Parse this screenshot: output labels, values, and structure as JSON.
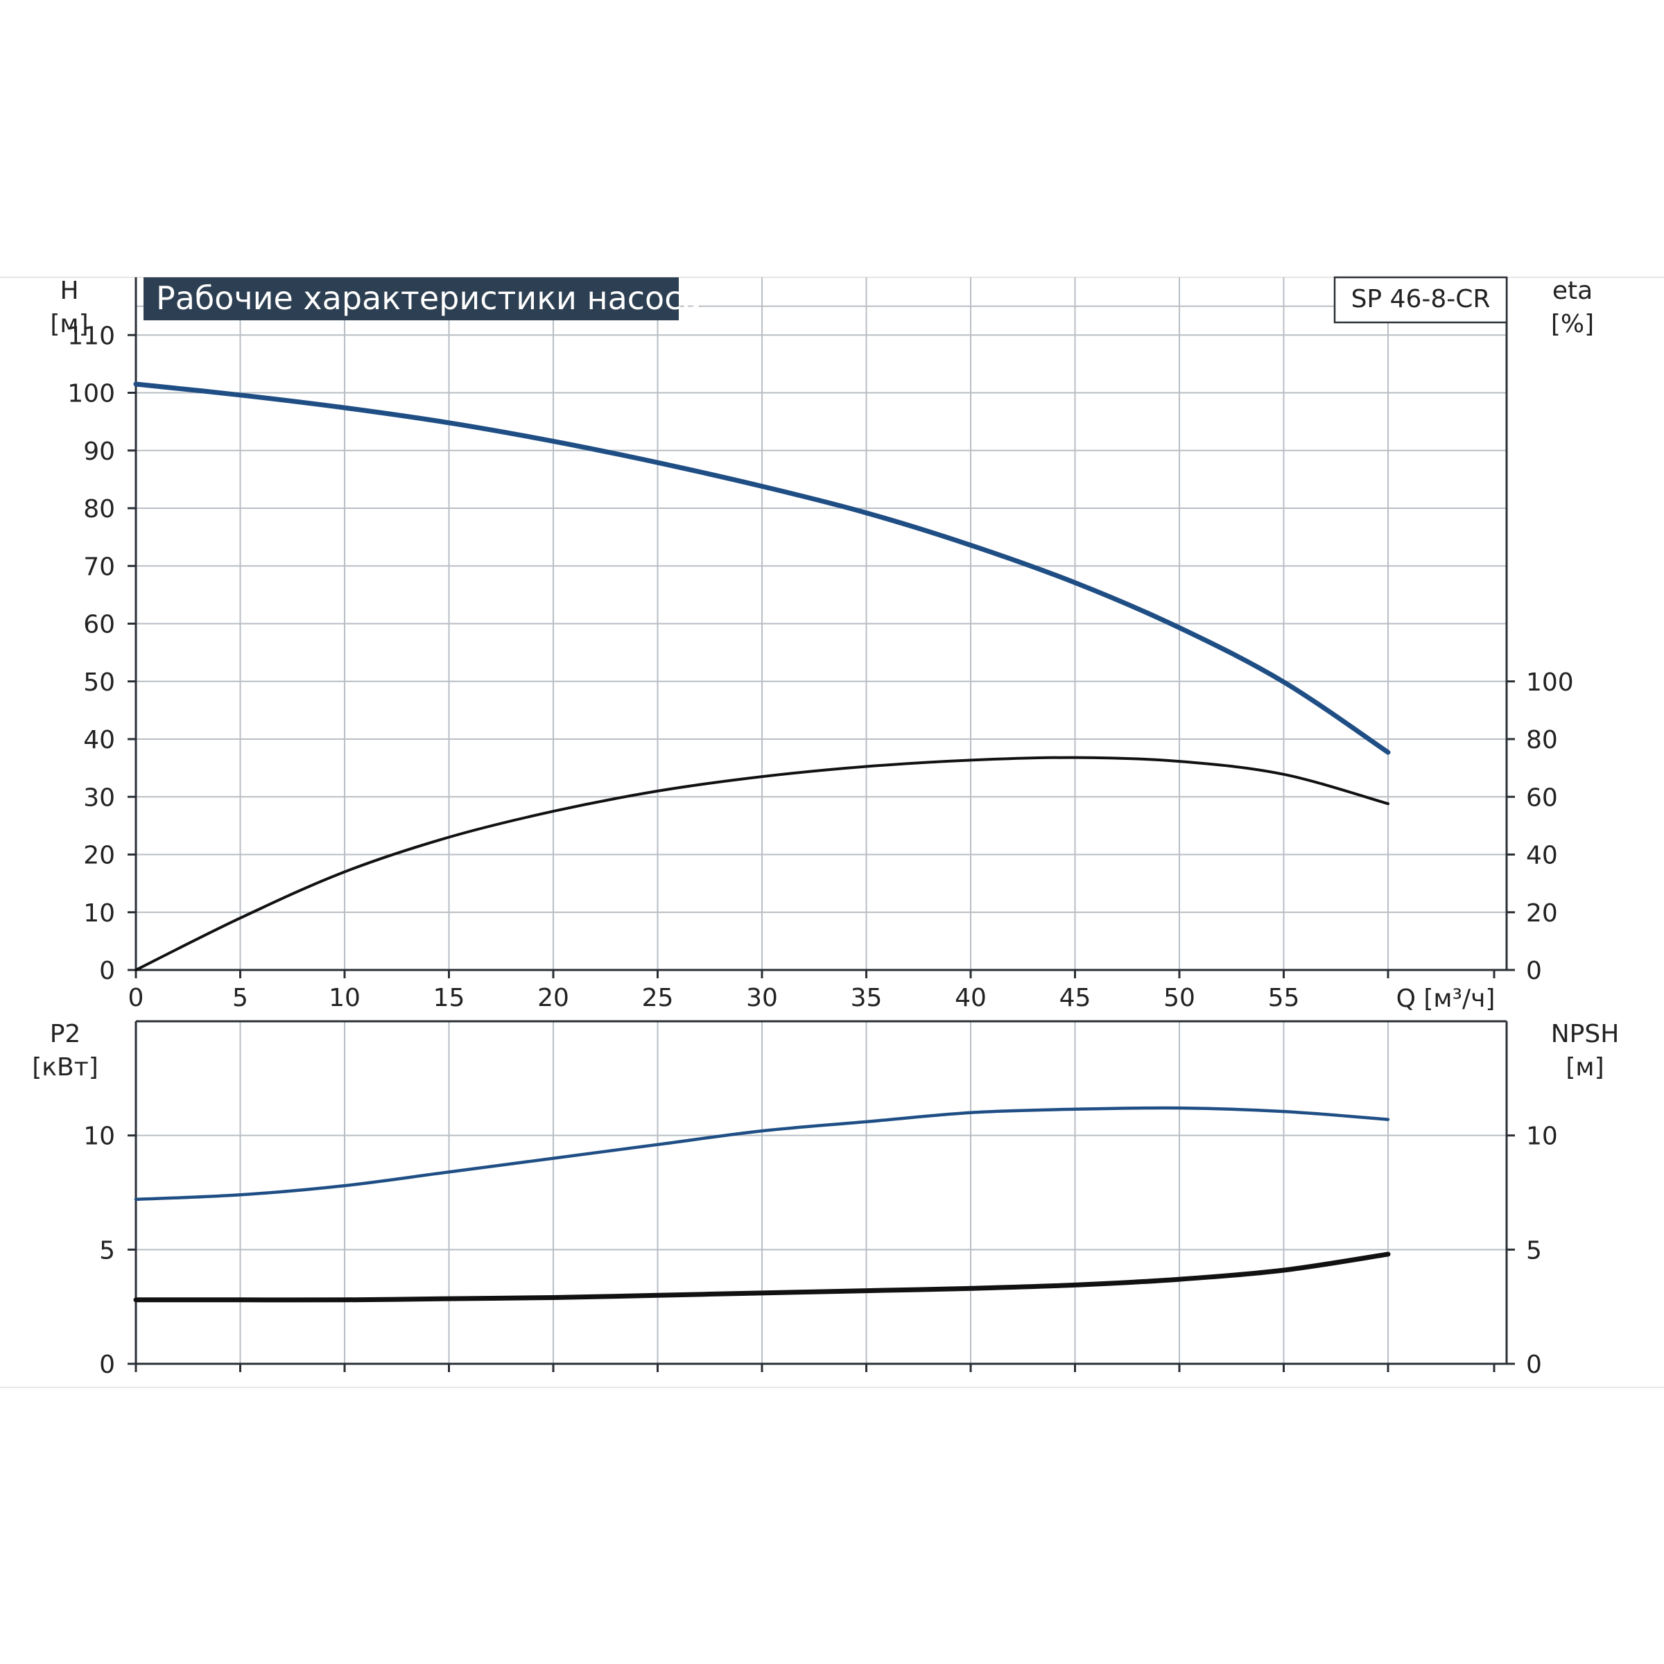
{
  "chart_data": [
    {
      "type": "line",
      "title": "Рабочие характеристики насоса",
      "model": "SP 46-8-CR",
      "xlabel": "Q [м³/ч]",
      "xlim": [
        0,
        65
      ],
      "xticks": [
        "0",
        "5",
        "10",
        "15",
        "20",
        "25",
        "30",
        "35",
        "40",
        "45",
        "50",
        "55"
      ],
      "left_axis": {
        "name": "H",
        "unit": "[м]",
        "ylim": [
          0,
          120
        ],
        "ticks": [
          "0",
          "10",
          "20",
          "30",
          "40",
          "50",
          "60",
          "70",
          "80",
          "90",
          "100",
          "110"
        ]
      },
      "right_axis": {
        "name": "eta",
        "unit": "[%]",
        "ylim": [
          0,
          240
        ],
        "ticks": [
          "0",
          "20",
          "40",
          "60",
          "80",
          "100"
        ]
      },
      "series": [
        {
          "key": "H",
          "axis": "left",
          "color": "#1f4e85",
          "x": [
            0,
            5,
            10,
            15,
            20,
            25,
            30,
            35,
            40,
            45,
            50,
            55,
            60
          ],
          "y": [
            101.5,
            99.6,
            97.4,
            94.8,
            91.6,
            87.9,
            83.8,
            79.2,
            73.6,
            67.1,
            59.3,
            49.9,
            37.7
          ]
        },
        {
          "key": "eta",
          "axis": "right",
          "color": "#111111",
          "x": [
            0,
            5,
            10,
            15,
            20,
            25,
            30,
            35,
            40,
            45,
            50,
            55,
            60
          ],
          "y": [
            0,
            18,
            34,
            46,
            55,
            62,
            67,
            70.5,
            72.7,
            73.6,
            72.3,
            67.8,
            57.6
          ]
        }
      ]
    },
    {
      "type": "line",
      "xlim": [
        0,
        65
      ],
      "left_axis": {
        "name": "P2",
        "unit": "[кВт]",
        "ylim": [
          0,
          15
        ],
        "ticks": [
          "0",
          "5",
          "10"
        ]
      },
      "right_axis": {
        "name": "NPSH",
        "unit": "[м]",
        "ylim": [
          0,
          15
        ],
        "ticks": [
          "0",
          "5",
          "10"
        ]
      },
      "series": [
        {
          "key": "P2",
          "axis": "left",
          "color": "#1f4e85",
          "x": [
            0,
            5,
            10,
            15,
            20,
            25,
            30,
            35,
            40,
            45,
            50,
            55,
            60
          ],
          "y": [
            7.2,
            7.4,
            7.8,
            8.4,
            9.0,
            9.6,
            10.2,
            10.6,
            11.0,
            11.15,
            11.2,
            11.05,
            10.7
          ]
        },
        {
          "key": "NPSH",
          "axis": "right",
          "color": "#111111",
          "x": [
            0,
            5,
            10,
            15,
            20,
            25,
            30,
            35,
            40,
            45,
            50,
            55,
            60
          ],
          "y": [
            2.8,
            2.8,
            2.8,
            2.85,
            2.9,
            3.0,
            3.1,
            3.2,
            3.3,
            3.45,
            3.7,
            4.1,
            4.8
          ]
        }
      ]
    }
  ]
}
